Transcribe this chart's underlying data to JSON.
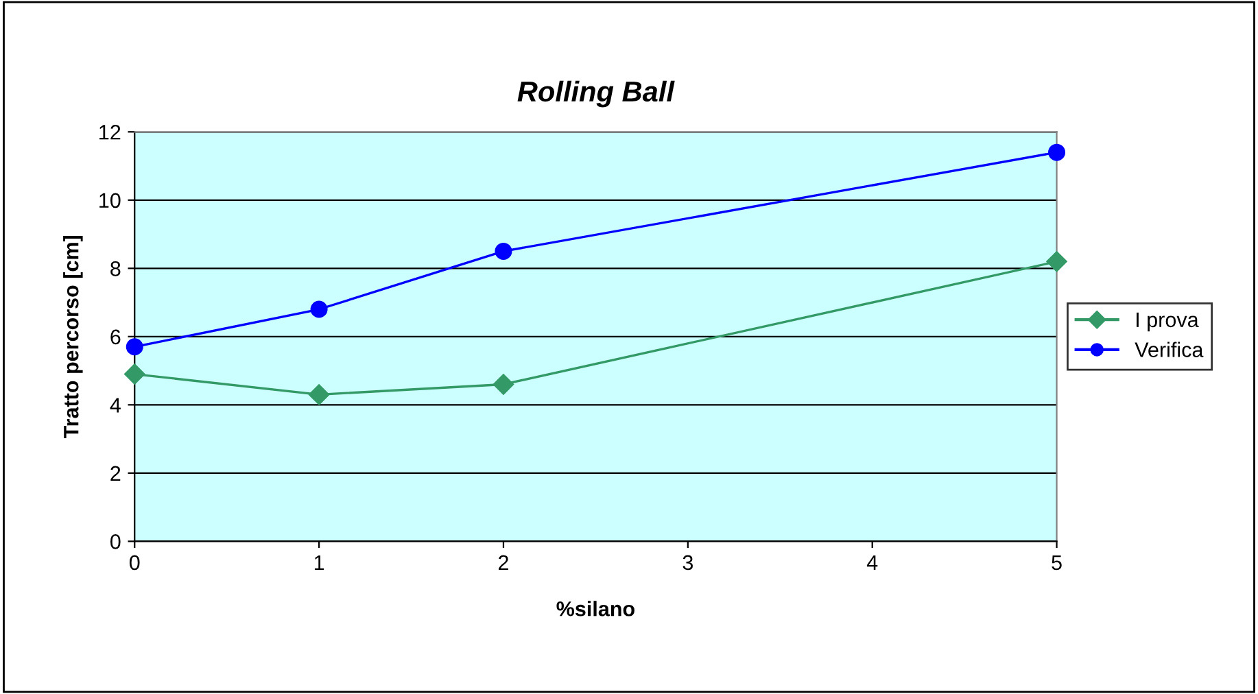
{
  "chart_data": {
    "type": "line",
    "title": "Rolling Ball",
    "xlabel": "%silano",
    "ylabel": "Tratto percorso [cm]",
    "x": [
      0,
      1,
      2,
      5
    ],
    "series": [
      {
        "name": "I prova",
        "color": "#339966",
        "marker": "diamond",
        "values": [
          4.9,
          4.3,
          4.6,
          8.2
        ]
      },
      {
        "name": "Verifica",
        "color": "#0000ff",
        "marker": "circle",
        "values": [
          5.7,
          6.8,
          8.5,
          11.4
        ]
      }
    ],
    "xlim": [
      0,
      5
    ],
    "xticks": [
      0,
      1,
      2,
      3,
      4,
      5
    ],
    "ylim": [
      0,
      12
    ],
    "yticks": [
      0,
      2,
      4,
      6,
      8,
      10,
      12
    ],
    "grid": "y",
    "legend": "right",
    "line_style": "solid"
  }
}
